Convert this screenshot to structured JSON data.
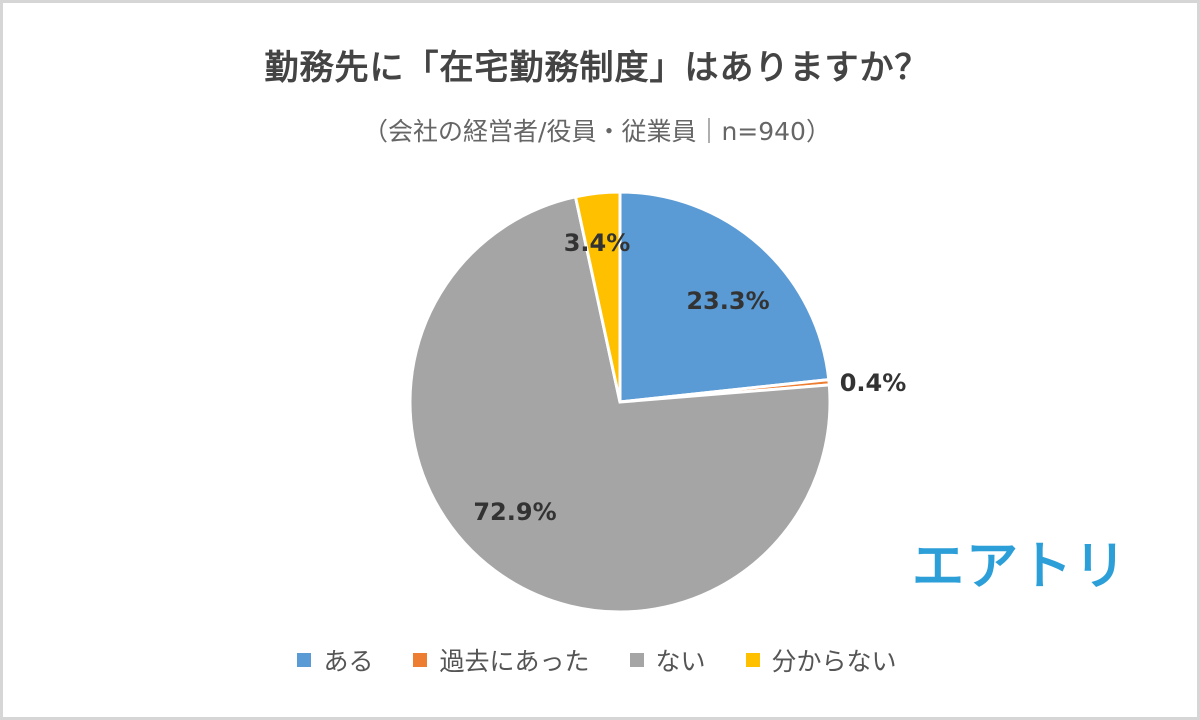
{
  "chart_data": {
    "type": "pie",
    "title": "勤務先に「在宅勤務制度」はありますか？",
    "subtitle": "（会社の経営者/役員・従業員｜n=940）",
    "slices": [
      {
        "name": "ある",
        "value": 23.3,
        "label": "23.3%",
        "color": "#5b9bd5"
      },
      {
        "name": "過去にあった",
        "value": 0.4,
        "label": "0.4%",
        "color": "#ed7d31"
      },
      {
        "name": "ない",
        "value": 72.9,
        "label": "72.9%",
        "color": "#a5a5a5"
      },
      {
        "name": "分からない",
        "value": 3.4,
        "label": "3.4%",
        "color": "#ffc000"
      }
    ],
    "legend_position": "bottom",
    "start_angle": "12 o'clock, clockwise"
  },
  "brand": {
    "logo_text": "エアトリ"
  }
}
